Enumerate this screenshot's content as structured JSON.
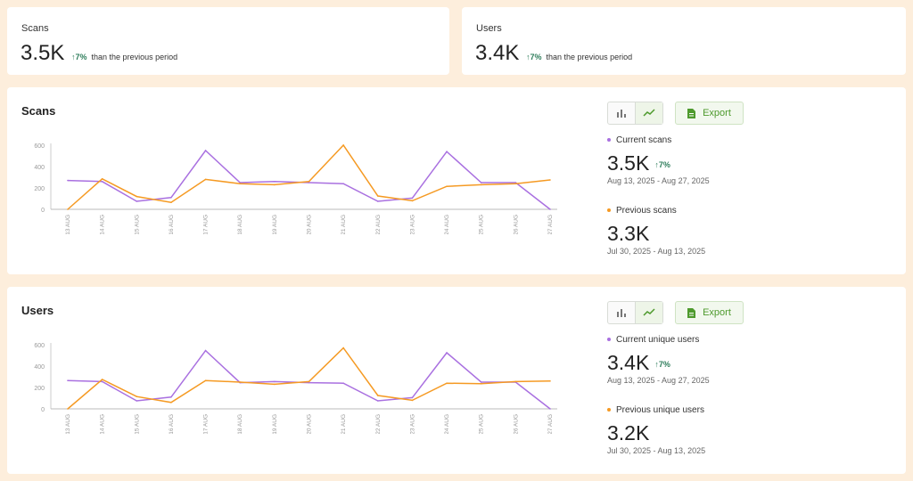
{
  "summary": [
    {
      "label": "Scans",
      "value": "3.5K",
      "change": "7%",
      "change_text": "than the previous period"
    },
    {
      "label": "Users",
      "value": "3.4K",
      "change": "7%",
      "change_text": "than the previous period"
    }
  ],
  "colors": {
    "current": "#a970e0",
    "previous": "#f59a23",
    "up": "#2e7d5b",
    "export": "#4e9a2d"
  },
  "panels": [
    {
      "title": "Scans",
      "export_label": "Export",
      "current_label": "Current scans",
      "current_value": "3.5K",
      "current_change": "7%",
      "current_range": "Aug 13, 2025 - Aug 27, 2025",
      "previous_label": "Previous scans",
      "previous_value": "3.3K",
      "previous_range": "Jul 30, 2025 - Aug 13, 2025"
    },
    {
      "title": "Users",
      "export_label": "Export",
      "current_label": "Current unique users",
      "current_value": "3.4K",
      "current_change": "7%",
      "current_range": "Aug 13, 2025 - Aug 27, 2025",
      "previous_label": "Previous unique users",
      "previous_value": "3.2K",
      "previous_range": "Jul 30, 2025 - Aug 13, 2025"
    }
  ],
  "chart_data": [
    {
      "type": "line",
      "categories": [
        "13 AUG",
        "14 AUG",
        "15 AUG",
        "16 AUG",
        "17 AUG",
        "18 AUG",
        "19 AUG",
        "20 AUG",
        "21 AUG",
        "22 AUG",
        "23 AUG",
        "24 AUG",
        "25 AUG",
        "26 AUG",
        "27 AUG"
      ],
      "yticks": [
        "0",
        "200",
        "400",
        "600"
      ],
      "ylim": [
        0,
        600
      ],
      "grid": false,
      "series": [
        {
          "name": "Current scans",
          "values": [
            270,
            260,
            75,
            110,
            550,
            250,
            260,
            250,
            240,
            75,
            105,
            540,
            250,
            250,
            0
          ]
        },
        {
          "name": "Previous scans",
          "values": [
            0,
            285,
            120,
            65,
            280,
            240,
            230,
            260,
            600,
            125,
            80,
            215,
            230,
            240,
            275
          ]
        }
      ]
    },
    {
      "type": "line",
      "categories": [
        "13 AUG",
        "14 AUG",
        "15 AUG",
        "16 AUG",
        "17 AUG",
        "18 AUG",
        "19 AUG",
        "20 AUG",
        "21 AUG",
        "22 AUG",
        "23 AUG",
        "24 AUG",
        "25 AUG",
        "26 AUG",
        "27 AUG"
      ],
      "yticks": [
        "0",
        "200",
        "400",
        "600"
      ],
      "ylim": [
        0,
        600
      ],
      "grid": false,
      "series": [
        {
          "name": "Current unique users",
          "values": [
            265,
            255,
            75,
            110,
            545,
            245,
            255,
            245,
            240,
            75,
            105,
            525,
            250,
            250,
            0
          ]
        },
        {
          "name": "Previous unique users",
          "values": [
            0,
            275,
            115,
            60,
            265,
            250,
            230,
            255,
            570,
            125,
            80,
            240,
            235,
            255,
            260
          ]
        }
      ]
    }
  ]
}
